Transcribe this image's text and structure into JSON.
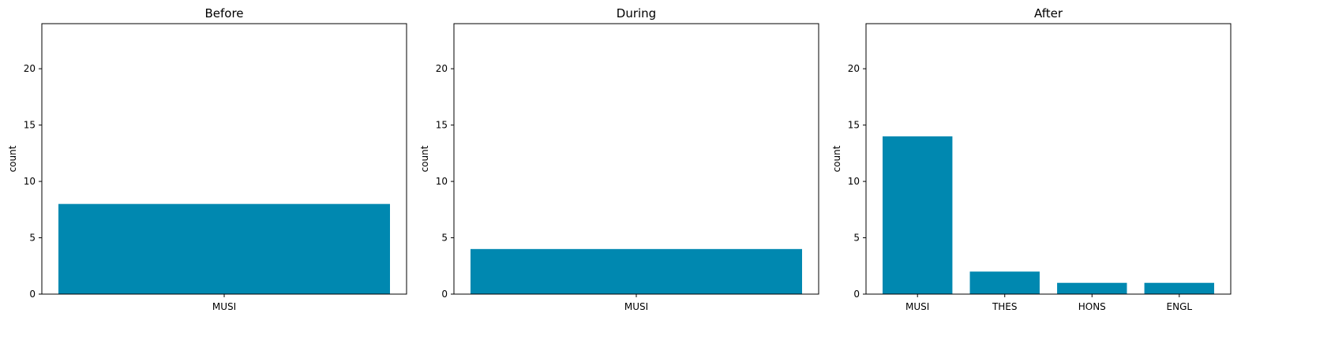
{
  "chart_data": [
    {
      "type": "bar",
      "title": "Before",
      "xlabel": "",
      "ylabel": "count",
      "ylim": [
        0,
        24
      ],
      "yticks": [
        0,
        5,
        10,
        15,
        20
      ],
      "categories": [
        "MUSI"
      ],
      "values": [
        8
      ],
      "color": "#0088B0",
      "grid": false
    },
    {
      "type": "bar",
      "title": "During",
      "xlabel": "",
      "ylabel": "count",
      "ylim": [
        0,
        24
      ],
      "yticks": [
        0,
        5,
        10,
        15,
        20
      ],
      "categories": [
        "MUSI"
      ],
      "values": [
        4
      ],
      "color": "#0088B0",
      "grid": false
    },
    {
      "type": "bar",
      "title": "After",
      "xlabel": "",
      "ylabel": "count",
      "ylim": [
        0,
        24
      ],
      "yticks": [
        0,
        5,
        10,
        15,
        20
      ],
      "categories": [
        "MUSI",
        "THES",
        "HONS",
        "ENGL"
      ],
      "values": [
        14,
        2,
        1,
        1
      ],
      "color": "#0088B0",
      "grid": false
    }
  ]
}
